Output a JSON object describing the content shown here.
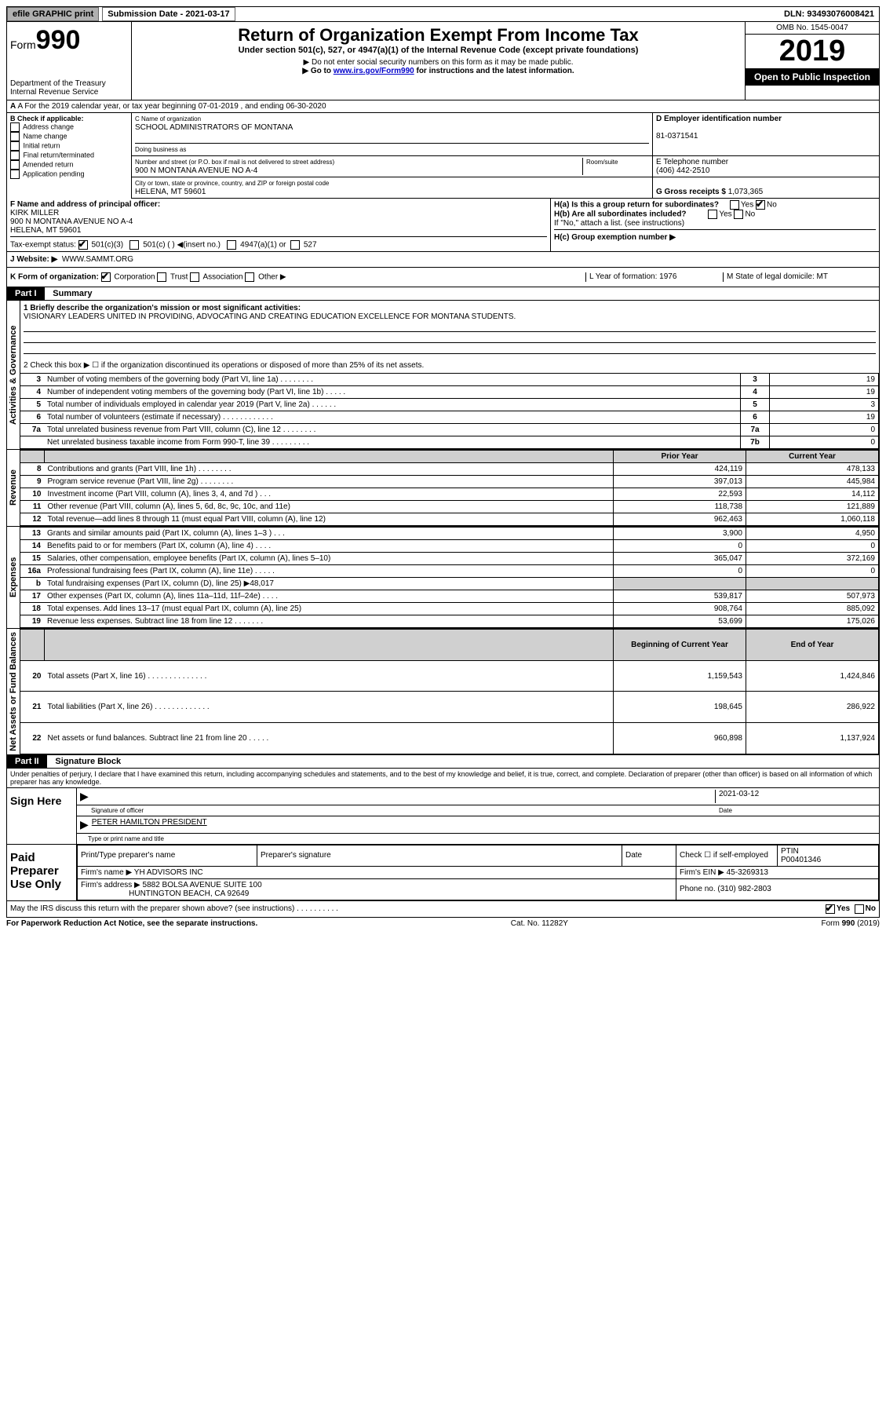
{
  "topbar": {
    "efile": "efile GRAPHIC print",
    "sub_label": "Submission Date - 2021-03-17",
    "dln": "DLN: 93493076008421"
  },
  "header": {
    "form_prefix": "Form",
    "form_no": "990",
    "dept": "Department of the Treasury",
    "irs": "Internal Revenue Service",
    "title": "Return of Organization Exempt From Income Tax",
    "subtitle": "Under section 501(c), 527, or 4947(a)(1) of the Internal Revenue Code (except private foundations)",
    "note1": "▶ Do not enter social security numbers on this form as it may be made public.",
    "note2_pre": "▶ Go to ",
    "note2_link": "www.irs.gov/Form990",
    "note2_post": " for instructions and the latest information.",
    "omb": "OMB No. 1545-0047",
    "year": "2019",
    "open": "Open to Public Inspection"
  },
  "rowA": "A For the 2019 calendar year, or tax year beginning 07-01-2019   , and ending 06-30-2020",
  "boxB": {
    "label": "B Check if applicable:",
    "items": [
      "Address change",
      "Name change",
      "Initial return",
      "Final return/terminated",
      "Amended return",
      "Application pending"
    ]
  },
  "boxC": {
    "name_lbl": "C Name of organization",
    "name": "SCHOOL ADMINISTRATORS OF MONTANA",
    "dba_lbl": "Doing business as",
    "addr_lbl": "Number and street (or P.O. box if mail is not delivered to street address)",
    "room_lbl": "Room/suite",
    "addr": "900 N MONTANA AVENUE NO A-4",
    "city_lbl": "City or town, state or province, country, and ZIP or foreign postal code",
    "city": "HELENA, MT  59601"
  },
  "boxD": {
    "lbl": "D Employer identification number",
    "val": "81-0371541"
  },
  "boxE": {
    "lbl": "E Telephone number",
    "val": "(406) 442-2510"
  },
  "boxG": {
    "lbl": "G Gross receipts $",
    "val": "1,073,365"
  },
  "boxF": {
    "lbl": "F  Name and address of principal officer:",
    "name": "KIRK MILLER",
    "addr1": "900 N MONTANA AVENUE NO A-4",
    "addr2": "HELENA, MT  59601"
  },
  "boxH": {
    "ha": "H(a)  Is this a group return for subordinates?",
    "hb": "H(b)  Are all subordinates included?",
    "hb_note": "If \"No,\" attach a list. (see instructions)",
    "hc": "H(c)  Group exemption number ▶",
    "yes": "Yes",
    "no": "No"
  },
  "taxstatus": {
    "lbl": "Tax-exempt status:",
    "c3": "501(c)(3)",
    "c": "501(c) (  ) ◀(insert no.)",
    "a1": "4947(a)(1) or",
    "s527": "527"
  },
  "rowJ": {
    "lbl": "J   Website: ▶",
    "val": "WWW.SAMMT.ORG"
  },
  "rowK": {
    "lbl": "K Form of organization:",
    "corp": "Corporation",
    "trust": "Trust",
    "assoc": "Association",
    "other": "Other ▶",
    "L": "L Year of formation: 1976",
    "M": "M State of legal domicile: MT"
  },
  "part1": {
    "hdr": "Part I",
    "title": "Summary",
    "l1_lbl": "1  Briefly describe the organization's mission or most significant activities:",
    "l1_val": "VISIONARY LEADERS UNITED IN PROVIDING, ADVOCATING AND CREATING EDUCATION EXCELLENCE FOR MONTANA STUDENTS.",
    "l2": "2    Check this box ▶ ☐  if the organization discontinued its operations or disposed of more than 25% of its net assets.",
    "rows_gov": [
      {
        "n": "3",
        "t": "Number of voting members of the governing body (Part VI, line 1a)   .    .    .    .    .    .    .    .",
        "a": "3",
        "v": "19"
      },
      {
        "n": "4",
        "t": "Number of independent voting members of the governing body (Part VI, line 1b)   .    .    .    .    .",
        "a": "4",
        "v": "19"
      },
      {
        "n": "5",
        "t": "Total number of individuals employed in calendar year 2019 (Part V, line 2a)   .    .    .    .    .    .",
        "a": "5",
        "v": "3"
      },
      {
        "n": "6",
        "t": "Total number of volunteers (estimate if necessary)   .    .    .    .    .    .    .    .    .    .    .    .",
        "a": "6",
        "v": "19"
      },
      {
        "n": "7a",
        "t": "Total unrelated business revenue from Part VIII, column (C), line 12   .    .    .    .    .    .    .    .",
        "a": "7a",
        "v": "0"
      },
      {
        "n": "",
        "t": "Net unrelated business taxable income from Form 990-T, line 39   .    .    .    .    .    .    .    .    .",
        "a": "7b",
        "v": "0"
      }
    ],
    "col_prior": "Prior Year",
    "col_curr": "Current Year",
    "rows_rev": [
      {
        "n": "8",
        "t": "Contributions and grants (Part VIII, line 1h)   .    .    .    .    .    .    .    .",
        "p": "424,119",
        "c": "478,133"
      },
      {
        "n": "9",
        "t": "Program service revenue (Part VIII, line 2g)   .    .    .    .    .    .    .    .",
        "p": "397,013",
        "c": "445,984"
      },
      {
        "n": "10",
        "t": "Investment income (Part VIII, column (A), lines 3, 4, and 7d )   .    .    .",
        "p": "22,593",
        "c": "14,112"
      },
      {
        "n": "11",
        "t": "Other revenue (Part VIII, column (A), lines 5, 6d, 8c, 9c, 10c, and 11e)",
        "p": "118,738",
        "c": "121,889"
      },
      {
        "n": "12",
        "t": "Total revenue—add lines 8 through 11 (must equal Part VIII, column (A), line 12)",
        "p": "962,463",
        "c": "1,060,118"
      }
    ],
    "rows_exp": [
      {
        "n": "13",
        "t": "Grants and similar amounts paid (Part IX, column (A), lines 1–3 )   .    .    .",
        "p": "3,900",
        "c": "4,950"
      },
      {
        "n": "14",
        "t": "Benefits paid to or for members (Part IX, column (A), line 4)   .    .    .    .",
        "p": "0",
        "c": "0"
      },
      {
        "n": "15",
        "t": "Salaries, other compensation, employee benefits (Part IX, column (A), lines 5–10)",
        "p": "365,047",
        "c": "372,169"
      },
      {
        "n": "16a",
        "t": "Professional fundraising fees (Part IX, column (A), line 11e)   .    .    .    .    .",
        "p": "0",
        "c": "0"
      },
      {
        "n": "b",
        "t": "Total fundraising expenses (Part IX, column (D), line 25) ▶48,017",
        "p": "",
        "c": "",
        "shade": true
      },
      {
        "n": "17",
        "t": "Other expenses (Part IX, column (A), lines 11a–11d, 11f–24e)   .    .    .    .",
        "p": "539,817",
        "c": "507,973"
      },
      {
        "n": "18",
        "t": "Total expenses. Add lines 13–17 (must equal Part IX, column (A), line 25)",
        "p": "908,764",
        "c": "885,092"
      },
      {
        "n": "19",
        "t": "Revenue less expenses. Subtract line 18 from line 12   .    .    .    .    .    .    .",
        "p": "53,699",
        "c": "175,026"
      }
    ],
    "col_beg": "Beginning of Current Year",
    "col_end": "End of Year",
    "rows_na": [
      {
        "n": "20",
        "t": "Total assets (Part X, line 16)   .    .    .    .    .    .    .    .    .    .    .    .    .    .",
        "p": "1,159,543",
        "c": "1,424,846"
      },
      {
        "n": "21",
        "t": "Total liabilities (Part X, line 26)   .    .    .    .    .    .    .    .    .    .    .    .    .",
        "p": "198,645",
        "c": "286,922"
      },
      {
        "n": "22",
        "t": "Net assets or fund balances. Subtract line 21 from line 20   .    .    .    .    .",
        "p": "960,898",
        "c": "1,137,924"
      }
    ],
    "vtab_gov": "Activities & Governance",
    "vtab_rev": "Revenue",
    "vtab_exp": "Expenses",
    "vtab_na": "Net Assets or Fund Balances"
  },
  "part2": {
    "hdr": "Part II",
    "title": "Signature Block",
    "decl": "Under penalties of perjury, I declare that I have examined this return, including accompanying schedules and statements, and to the best of my knowledge and belief, it is true, correct, and complete. Declaration of preparer (other than officer) is based on all information of which preparer has any knowledge.",
    "sign_here": "Sign Here",
    "sig_officer": "Signature of officer",
    "date_lbl": "Date",
    "date_val": "2021-03-12",
    "name_title": "PETER HAMILTON  PRESIDENT",
    "name_title_lbl": "Type or print name and title",
    "paid": "Paid Preparer Use Only",
    "prep_name_lbl": "Print/Type preparer's name",
    "prep_sig_lbl": "Preparer's signature",
    "check_self": "Check ☐ if self-employed",
    "ptin_lbl": "PTIN",
    "ptin": "P00401346",
    "firm_name_lbl": "Firm's name    ▶",
    "firm_name": "YH ADVISORS INC",
    "firm_ein_lbl": "Firm's EIN ▶",
    "firm_ein": "45-3269313",
    "firm_addr_lbl": "Firm's address ▶",
    "firm_addr1": "5882 BOLSA AVENUE SUITE 100",
    "firm_addr2": "HUNTINGTON BEACH, CA  92649",
    "phone_lbl": "Phone no.",
    "phone": "(310) 982-2803",
    "may_irs": "May the IRS discuss this return with the preparer shown above? (see instructions)   .    .    .    .    .    .    .    .    .    .",
    "yes": "Yes",
    "no": "No"
  },
  "footer": {
    "pra": "For Paperwork Reduction Act Notice, see the separate instructions.",
    "cat": "Cat. No. 11282Y",
    "form": "Form 990 (2019)"
  }
}
